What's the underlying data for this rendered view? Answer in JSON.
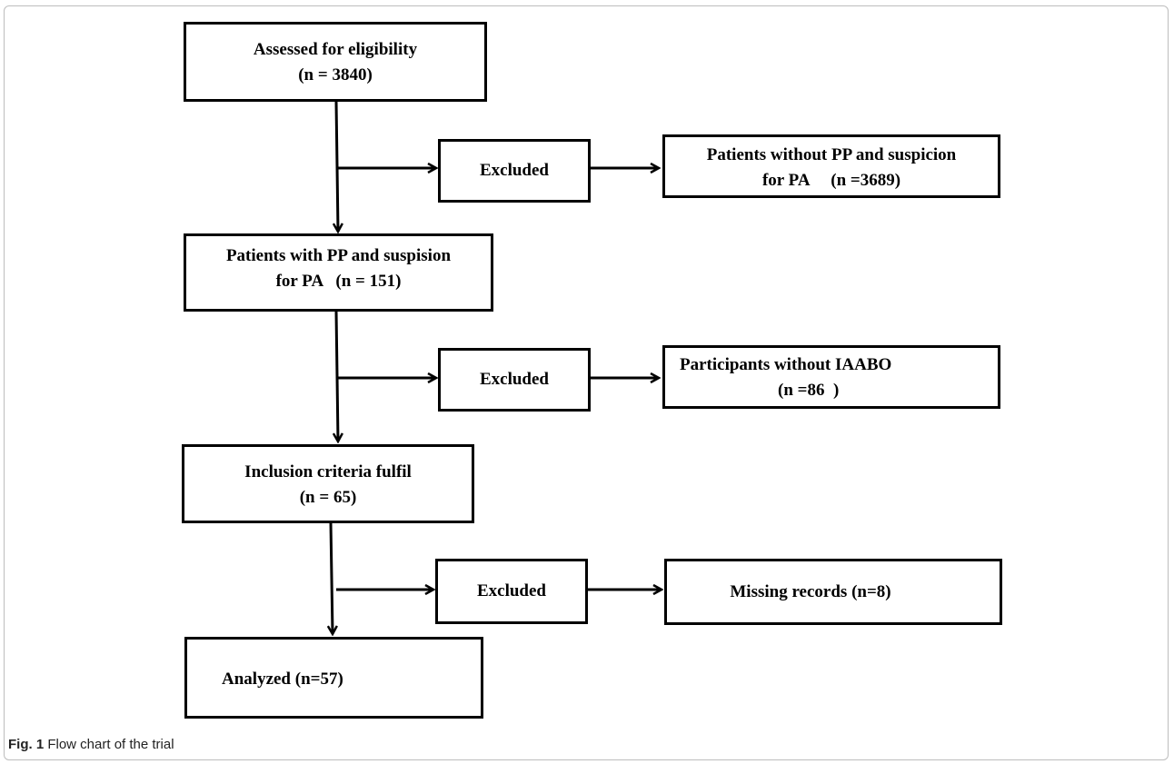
{
  "boxes": {
    "assessed": {
      "line1": "Assessed for eligibility",
      "line2": "(n = 3840)"
    },
    "excluded_1": {
      "label": "Excluded"
    },
    "without_pp": {
      "line1": "Patients without PP and suspicion",
      "line2": "for PA     (n =3689)"
    },
    "with_pp": {
      "line1": "Patients with PP and suspision",
      "line2": "for PA   (n = 151)"
    },
    "excluded_2": {
      "label": "Excluded"
    },
    "without_iaabo": {
      "line1": "Participants without IAABO",
      "line2": "(n =86  )"
    },
    "inclusion": {
      "line1": "Inclusion criteria fulfil",
      "line2": "(n = 65)"
    },
    "excluded_3": {
      "label": "Excluded"
    },
    "missing": {
      "label": "Missing records (n=8)"
    },
    "analyzed": {
      "label": "Analyzed (n=57)"
    }
  },
  "caption": {
    "label": "Fig. 1",
    "text": " Flow chart of the trial"
  }
}
